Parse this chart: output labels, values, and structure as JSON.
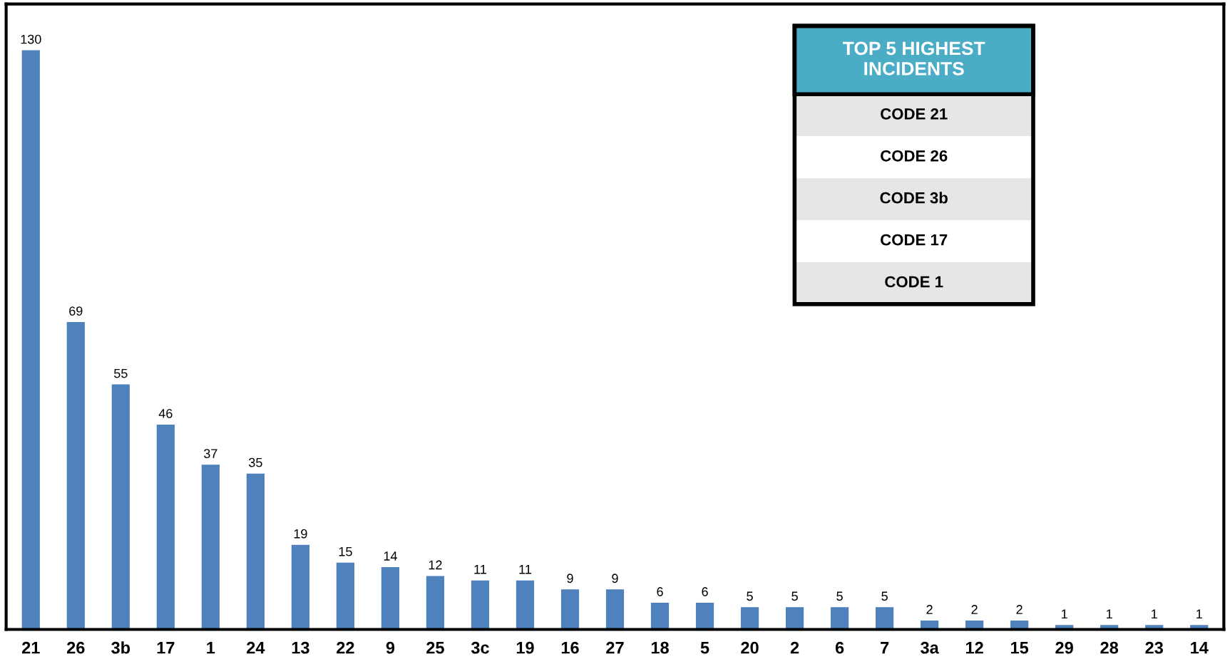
{
  "chart_data": {
    "type": "bar",
    "categories": [
      "21",
      "26",
      "3b",
      "17",
      "1",
      "24",
      "13",
      "22",
      "9",
      "25",
      "3c",
      "19",
      "16",
      "27",
      "18",
      "5",
      "20",
      "2",
      "6",
      "7",
      "3a",
      "12",
      "15",
      "29",
      "28",
      "23",
      "14"
    ],
    "values": [
      130,
      69,
      55,
      46,
      37,
      35,
      19,
      15,
      14,
      12,
      11,
      11,
      9,
      9,
      6,
      6,
      5,
      5,
      5,
      5,
      2,
      2,
      2,
      1,
      1,
      1,
      1
    ],
    "color": "#4f81bd",
    "data_labels": true,
    "grid": false,
    "legend": false,
    "annotations": [
      "TOP 5 HIGHEST INCIDENTS",
      "CODE 21",
      "CODE 26",
      "CODE 3b",
      "CODE 17",
      "CODE 1"
    ]
  }
}
